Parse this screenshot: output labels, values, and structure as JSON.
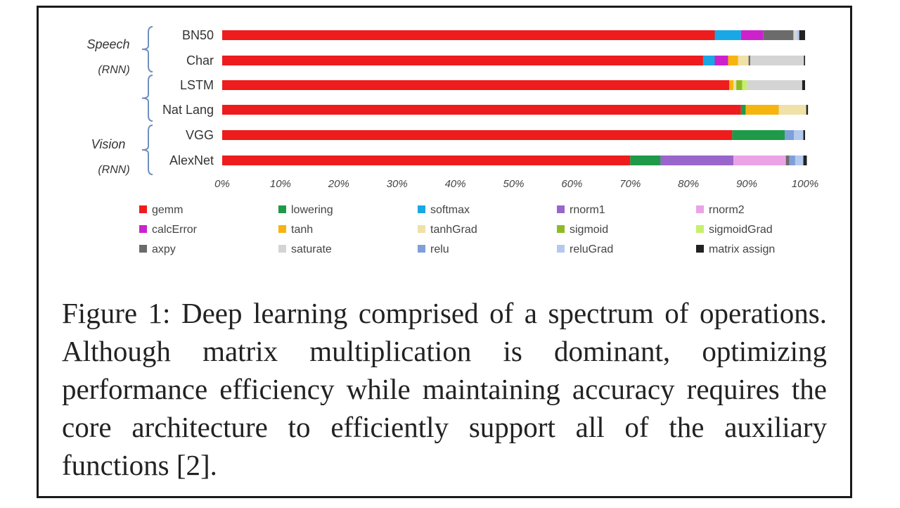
{
  "chart_data": {
    "type": "bar",
    "orientation": "horizontal",
    "stacked": true,
    "percent": true,
    "categories": [
      "BN50",
      "Char",
      "LSTM",
      "Nat Lang",
      "VGG",
      "AlexNet"
    ],
    "groups": [
      {
        "label": "Speech",
        "sublabel": "(RNN)"
      },
      {
        "label": "Vision",
        "sublabel": "(RNN)"
      }
    ],
    "series": [
      {
        "name": "gemm",
        "color": "#ee1c1c",
        "values": [
          84.5,
          82.5,
          87,
          89,
          87.5,
          70
        ]
      },
      {
        "name": "lowering",
        "color": "#1f9a48",
        "values": [
          0,
          0,
          0,
          0.8,
          9,
          5.2
        ]
      },
      {
        "name": "softmax",
        "color": "#1aa7e6",
        "values": [
          4.5,
          2,
          0,
          0,
          0,
          0
        ]
      },
      {
        "name": "rnorm1",
        "color": "#9966cc",
        "values": [
          0,
          0,
          0,
          0,
          0,
          12.5
        ]
      },
      {
        "name": "rnorm2",
        "color": "#eba3e6",
        "values": [
          0,
          0,
          0,
          0,
          0,
          9
        ]
      },
      {
        "name": "calcError",
        "color": "#cc22cc",
        "values": [
          3.8,
          2.3,
          0,
          0,
          0,
          0
        ]
      },
      {
        "name": "tanh",
        "color": "#f6b40e",
        "values": [
          0,
          1.7,
          0.7,
          5.7,
          0,
          0
        ]
      },
      {
        "name": "tanhGrad",
        "color": "#efe1a8",
        "values": [
          0,
          1.8,
          0.5,
          4.7,
          0,
          0
        ]
      },
      {
        "name": "sigmoid",
        "color": "#8dbb25",
        "values": [
          0,
          0,
          1,
          0,
          0,
          0
        ]
      },
      {
        "name": "sigmoidGrad",
        "color": "#c6ef6b",
        "values": [
          0,
          0,
          0.8,
          0,
          0,
          0
        ]
      },
      {
        "name": "axpy",
        "color": "#6b6b6b",
        "values": [
          5.2,
          0.3,
          0,
          0,
          0,
          0.6
        ]
      },
      {
        "name": "saturate",
        "color": "#d4d4d4",
        "values": [
          0.6,
          9.2,
          9.5,
          0,
          0,
          0
        ]
      },
      {
        "name": "relu",
        "color": "#7f9fd8",
        "values": [
          0,
          0,
          0,
          0,
          1.6,
          1
        ]
      },
      {
        "name": "reluGrad",
        "color": "#b3c9ee",
        "values": [
          0.4,
          0,
          0,
          0,
          1.6,
          1.4
        ]
      },
      {
        "name": "matrix assign",
        "color": "#222222",
        "values": [
          1,
          0.2,
          0.5,
          0.3,
          0.3,
          0.6
        ]
      }
    ],
    "x_ticks": [
      "0%",
      "10%",
      "20%",
      "30%",
      "40%",
      "50%",
      "60%",
      "70%",
      "80%",
      "90%",
      "100%"
    ],
    "xlim": [
      0,
      100
    ],
    "grid": false,
    "legend_position": "bottom",
    "legend_columns": 5
  },
  "caption": "Figure 1: Deep learning comprised of a spectrum of operations. Although matrix multiplication is dominant, optimizing performance efficiency while maintaining accuracy requires the core architecture to efficiently support all of the auxiliary functions [2]."
}
